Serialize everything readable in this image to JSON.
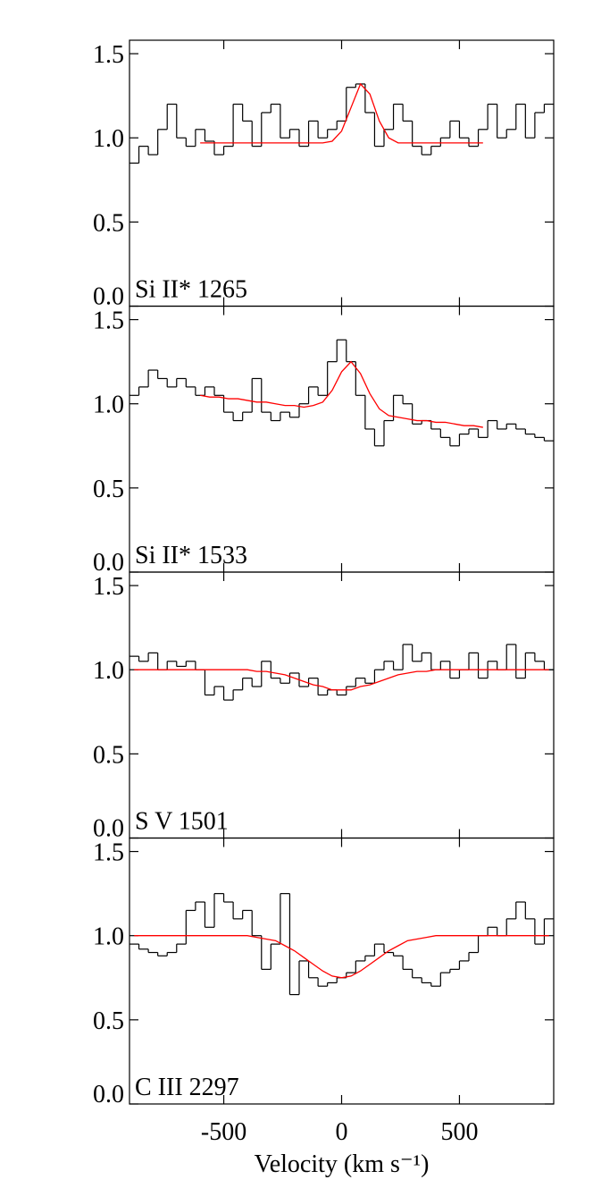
{
  "chart_data": [
    {
      "type": "step",
      "label": "Si II* 1265",
      "x": [
        -880,
        -840,
        -800,
        -760,
        -720,
        -680,
        -640,
        -600,
        -560,
        -520,
        -480,
        -440,
        -400,
        -360,
        -320,
        -280,
        -240,
        -200,
        -160,
        -120,
        -80,
        -40,
        0,
        40,
        80,
        120,
        160,
        200,
        240,
        280,
        320,
        360,
        400,
        440,
        480,
        520,
        560,
        600,
        640,
        680,
        720,
        760,
        800,
        840,
        880
      ],
      "xlim": [
        -900,
        900
      ],
      "ylim": [
        0,
        1.58
      ],
      "yticks": [
        {
          "value": 0,
          "label": "0.0"
        },
        0.5,
        {
          "value": 1,
          "label": "1.0"
        },
        1.5
      ],
      "series": [
        {
          "color": "#000000",
          "values": [
            0.85,
            0.95,
            0.9,
            1.05,
            1.2,
            1.0,
            0.95,
            1.05,
            0.98,
            0.9,
            0.95,
            1.2,
            1.1,
            0.95,
            1.15,
            1.2,
            1.0,
            1.05,
            0.95,
            1.1,
            1.0,
            1.05,
            1.1,
            1.3,
            1.32,
            1.15,
            0.95,
            1.05,
            1.2,
            1.1,
            0.95,
            0.9,
            0.95,
            1.0,
            1.1,
            1.0,
            0.95,
            1.05,
            1.2,
            1.0,
            1.05,
            1.2,
            1.0,
            1.15,
            1.2
          ]
        },
        {
          "color": "#ff0000",
          "values": [
            null,
            null,
            null,
            null,
            null,
            null,
            null,
            0.97,
            0.97,
            0.97,
            0.97,
            0.97,
            0.97,
            0.97,
            0.97,
            0.97,
            0.97,
            0.97,
            0.97,
            0.97,
            0.97,
            0.98,
            1.04,
            1.18,
            1.32,
            1.26,
            1.1,
            1.0,
            0.97,
            0.97,
            0.97,
            0.97,
            0.97,
            0.97,
            0.97,
            0.97,
            0.97,
            0.97,
            null,
            null,
            null,
            null,
            null,
            null,
            null
          ]
        }
      ]
    },
    {
      "type": "step",
      "label": "Si II* 1533",
      "x": [
        -880,
        -840,
        -800,
        -760,
        -720,
        -680,
        -640,
        -600,
        -560,
        -520,
        -480,
        -440,
        -400,
        -360,
        -320,
        -280,
        -240,
        -200,
        -160,
        -120,
        -80,
        -40,
        0,
        40,
        80,
        120,
        160,
        200,
        240,
        280,
        320,
        360,
        400,
        440,
        480,
        520,
        560,
        600,
        640,
        680,
        720,
        760,
        800,
        840,
        880
      ],
      "xlim": [
        -900,
        900
      ],
      "ylim": [
        0,
        1.58
      ],
      "yticks": [
        {
          "value": 0,
          "label": "0.0"
        },
        0.5,
        {
          "value": 1,
          "label": "1.0"
        },
        1.5
      ],
      "series": [
        {
          "color": "#000000",
          "values": [
            1.05,
            1.1,
            1.2,
            1.15,
            1.1,
            1.15,
            1.1,
            1.05,
            1.1,
            1.05,
            0.95,
            0.9,
            0.95,
            1.15,
            0.95,
            0.9,
            0.95,
            0.92,
            1.0,
            1.1,
            1.05,
            1.25,
            1.38,
            1.25,
            1.05,
            0.85,
            0.75,
            0.9,
            1.05,
            1.0,
            0.88,
            0.9,
            0.85,
            0.8,
            0.75,
            0.82,
            0.85,
            0.8,
            0.9,
            0.85,
            0.88,
            0.85,
            0.82,
            0.8,
            0.78
          ]
        },
        {
          "color": "#ff0000",
          "values": [
            null,
            null,
            null,
            null,
            null,
            null,
            null,
            1.05,
            1.04,
            1.04,
            1.03,
            1.03,
            1.02,
            1.01,
            1.01,
            1.0,
            0.99,
            0.99,
            0.98,
            0.99,
            1.01,
            1.08,
            1.19,
            1.25,
            1.18,
            1.06,
            0.97,
            0.93,
            0.92,
            0.91,
            0.9,
            0.9,
            0.89,
            0.89,
            0.88,
            0.87,
            0.87,
            0.86,
            null,
            null,
            null,
            null,
            null,
            null,
            null
          ]
        }
      ]
    },
    {
      "type": "step",
      "label": "S V 1501",
      "x": [
        -880,
        -840,
        -800,
        -760,
        -720,
        -680,
        -640,
        -600,
        -560,
        -520,
        -480,
        -440,
        -400,
        -360,
        -320,
        -280,
        -240,
        -200,
        -160,
        -120,
        -80,
        -40,
        0,
        40,
        80,
        120,
        160,
        200,
        240,
        280,
        320,
        360,
        400,
        440,
        480,
        520,
        560,
        600,
        640,
        680,
        720,
        760,
        800,
        840,
        880
      ],
      "xlim": [
        -900,
        900
      ],
      "ylim": [
        0,
        1.58
      ],
      "yticks": [
        {
          "value": 0,
          "label": "0.0"
        },
        0.5,
        {
          "value": 1,
          "label": "1.0"
        },
        1.5
      ],
      "series": [
        {
          "color": "#000000",
          "values": [
            1.08,
            1.05,
            1.1,
            1.0,
            1.05,
            1.02,
            1.05,
            1.0,
            0.85,
            0.9,
            0.82,
            0.88,
            0.95,
            0.9,
            1.05,
            0.95,
            0.92,
            0.98,
            0.9,
            0.95,
            0.85,
            0.88,
            0.85,
            0.9,
            0.95,
            0.92,
            1.0,
            1.05,
            1.0,
            1.15,
            1.05,
            1.1,
            1.0,
            1.05,
            0.95,
            1.0,
            1.1,
            0.95,
            1.05,
            1.0,
            1.15,
            0.95,
            1.1,
            1.05,
            1.0
          ]
        },
        {
          "color": "#ff0000",
          "values": [
            1.0,
            1.0,
            1.0,
            1.0,
            1.0,
            1.0,
            1.0,
            1.0,
            1.0,
            1.0,
            1.0,
            1.0,
            1.0,
            0.99,
            0.99,
            0.98,
            0.97,
            0.95,
            0.93,
            0.91,
            0.9,
            0.88,
            0.88,
            0.88,
            0.9,
            0.91,
            0.93,
            0.95,
            0.97,
            0.98,
            0.99,
            0.99,
            1.0,
            1.0,
            1.0,
            1.0,
            1.0,
            1.0,
            1.0,
            1.0,
            1.0,
            1.0,
            1.0,
            1.0,
            1.0
          ]
        }
      ]
    },
    {
      "type": "step",
      "label": "C III 2297",
      "x_label": "Velocity (km s⁻¹)",
      "x": [
        -880,
        -840,
        -800,
        -760,
        -720,
        -680,
        -640,
        -600,
        -560,
        -520,
        -480,
        -440,
        -400,
        -360,
        -320,
        -280,
        -240,
        -200,
        -160,
        -120,
        -80,
        -40,
        0,
        40,
        80,
        120,
        160,
        200,
        240,
        280,
        320,
        360,
        400,
        440,
        480,
        520,
        560,
        600,
        640,
        680,
        720,
        760,
        800,
        840,
        880
      ],
      "xlim": [
        -900,
        900
      ],
      "ylim": [
        0,
        1.58
      ],
      "xticks": [
        -500,
        0,
        500
      ],
      "yticks": [
        {
          "value": 0,
          "label": "0.0"
        },
        0.5,
        {
          "value": 1,
          "label": "1.0"
        },
        1.5
      ],
      "series": [
        {
          "color": "#000000",
          "values": [
            0.95,
            0.92,
            0.9,
            0.88,
            0.9,
            0.95,
            1.15,
            1.2,
            1.05,
            1.25,
            1.2,
            1.1,
            1.15,
            1.0,
            0.8,
            0.95,
            1.25,
            0.65,
            0.85,
            0.75,
            0.7,
            0.72,
            0.75,
            0.78,
            0.85,
            0.88,
            0.95,
            0.9,
            0.88,
            0.8,
            0.75,
            0.72,
            0.7,
            0.78,
            0.8,
            0.85,
            0.9,
            1.0,
            1.05,
            1.0,
            1.1,
            1.2,
            1.1,
            0.95,
            1.1
          ]
        },
        {
          "color": "#ff0000",
          "values": [
            1.0,
            1.0,
            1.0,
            1.0,
            1.0,
            1.0,
            1.0,
            1.0,
            1.0,
            1.0,
            1.0,
            1.0,
            1.0,
            0.99,
            0.98,
            0.97,
            0.94,
            0.91,
            0.87,
            0.83,
            0.79,
            0.76,
            0.75,
            0.76,
            0.79,
            0.83,
            0.87,
            0.91,
            0.94,
            0.97,
            0.98,
            0.99,
            1.0,
            1.0,
            1.0,
            1.0,
            1.0,
            1.0,
            1.0,
            1.0,
            1.0,
            1.0,
            1.0,
            1.0,
            1.0
          ]
        }
      ]
    }
  ]
}
